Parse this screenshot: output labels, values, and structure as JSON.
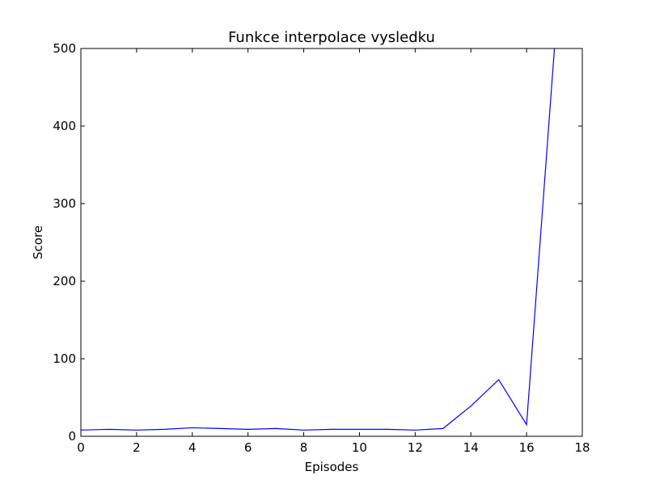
{
  "chart_data": {
    "type": "line",
    "title": "Funkce interpolace vysledku",
    "xlabel": "Episodes",
    "ylabel": "Score",
    "xlim": [
      0,
      18
    ],
    "ylim": [
      0,
      500
    ],
    "xticks": [
      0,
      2,
      4,
      6,
      8,
      10,
      12,
      14,
      16,
      18
    ],
    "yticks": [
      0,
      100,
      200,
      300,
      400,
      500
    ],
    "xtick_labels": [
      "0",
      "2",
      "4",
      "6",
      "8",
      "10",
      "12",
      "14",
      "16",
      "18"
    ],
    "ytick_labels": [
      "0",
      "100",
      "200",
      "300",
      "400",
      "500"
    ],
    "grid": false,
    "series": [
      {
        "color": "#0000ff",
        "x": [
          0,
          1,
          2,
          3,
          4,
          5,
          6,
          7,
          8,
          9,
          10,
          11,
          12,
          13,
          14,
          15,
          16,
          17
        ],
        "y": [
          8,
          9,
          8,
          9,
          11,
          10,
          9,
          10,
          8,
          9,
          9,
          9,
          8,
          10,
          39,
          73,
          15,
          500
        ]
      }
    ]
  }
}
